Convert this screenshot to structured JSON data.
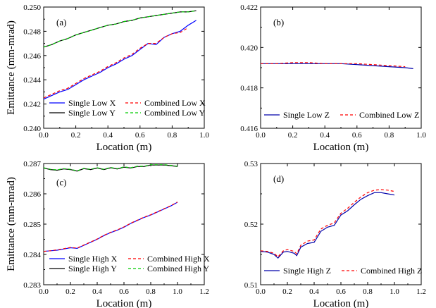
{
  "chart_data": [
    {
      "type": "line",
      "panel_label": "(a)",
      "xlabel": "Location (m)",
      "ylabel": "Emittance (mm-mrad)",
      "xlim": [
        0.0,
        1.0
      ],
      "ylim": [
        0.24,
        0.25
      ],
      "xticks": [
        "0.0",
        "0.2",
        "0.4",
        "0.6",
        "0.8",
        "1.0"
      ],
      "yticks": [
        "0.240",
        "0.242",
        "0.244",
        "0.246",
        "0.248",
        "0.250"
      ],
      "legend": "lower-right",
      "series": [
        {
          "name": "Single Low X",
          "color": "#0000ff",
          "dash": "solid",
          "x": [
            0.0,
            0.05,
            0.1,
            0.15,
            0.2,
            0.25,
            0.3,
            0.35,
            0.4,
            0.45,
            0.5,
            0.55,
            0.6,
            0.65,
            0.7,
            0.75,
            0.8,
            0.85,
            0.9,
            0.95
          ],
          "y": [
            0.2424,
            0.2427,
            0.243,
            0.2432,
            0.2436,
            0.244,
            0.2443,
            0.2446,
            0.245,
            0.2453,
            0.2457,
            0.246,
            0.2465,
            0.247,
            0.2469,
            0.2475,
            0.2478,
            0.248,
            0.2485,
            0.2489
          ]
        },
        {
          "name": "Single Low Y",
          "color": "#000000",
          "dash": "solid",
          "x": [
            0.0,
            0.05,
            0.1,
            0.15,
            0.2,
            0.25,
            0.3,
            0.35,
            0.4,
            0.45,
            0.5,
            0.55,
            0.6,
            0.65,
            0.7,
            0.75,
            0.8,
            0.85,
            0.9,
            0.95
          ],
          "y": [
            0.2467,
            0.2469,
            0.2472,
            0.2474,
            0.2477,
            0.2479,
            0.2481,
            0.2483,
            0.2485,
            0.2486,
            0.2488,
            0.2489,
            0.2491,
            0.2492,
            0.2493,
            0.2494,
            0.2495,
            0.2496,
            0.2496,
            0.2497
          ]
        },
        {
          "name": "Combined Low X",
          "color": "#ff0000",
          "dash": "dashed",
          "x": [
            0.0,
            0.05,
            0.1,
            0.15,
            0.2,
            0.25,
            0.3,
            0.35,
            0.4,
            0.45,
            0.5,
            0.55,
            0.6,
            0.65,
            0.7,
            0.75,
            0.8,
            0.85,
            0.9
          ],
          "y": [
            0.2425,
            0.2428,
            0.2431,
            0.2433,
            0.2437,
            0.2441,
            0.2444,
            0.2447,
            0.2451,
            0.2454,
            0.2458,
            0.2461,
            0.2466,
            0.247,
            0.247,
            0.2475,
            0.2478,
            0.2479,
            0.2483
          ]
        },
        {
          "name": "Combined Low Y",
          "color": "#00cc00",
          "dash": "dashed",
          "x": [
            0.0,
            0.05,
            0.1,
            0.15,
            0.2,
            0.25,
            0.3,
            0.35,
            0.4,
            0.45,
            0.5,
            0.55,
            0.6,
            0.65,
            0.7,
            0.75,
            0.8,
            0.85,
            0.9,
            0.95
          ],
          "y": [
            0.2467,
            0.2469,
            0.2472,
            0.2474,
            0.2477,
            0.2479,
            0.2481,
            0.2483,
            0.2485,
            0.2486,
            0.2488,
            0.2489,
            0.2491,
            0.2492,
            0.2493,
            0.2494,
            0.2495,
            0.2496,
            0.2496,
            0.2497
          ]
        }
      ]
    },
    {
      "type": "line",
      "panel_label": "(b)",
      "xlabel": "Location (m)",
      "ylabel": "",
      "xlim": [
        0.0,
        1.0
      ],
      "ylim": [
        0.416,
        0.422
      ],
      "xticks": [
        "0.0",
        "0.2",
        "0.4",
        "0.6",
        "0.8",
        "1.0"
      ],
      "yticks": [
        "0.416",
        "0.418",
        "0.420",
        "0.422"
      ],
      "legend": "lower-center",
      "series": [
        {
          "name": "Single Low Z",
          "color": "#0000aa",
          "dash": "solid",
          "x": [
            0.0,
            0.1,
            0.2,
            0.3,
            0.4,
            0.5,
            0.6,
            0.7,
            0.8,
            0.9,
            0.95
          ],
          "y": [
            0.4192,
            0.4192,
            0.4192,
            0.4192,
            0.4192,
            0.4192,
            0.41915,
            0.4191,
            0.41905,
            0.419,
            0.41895
          ]
        },
        {
          "name": "Combined Low Z",
          "color": "#ff0000",
          "dash": "dashed",
          "x": [
            0.0,
            0.1,
            0.2,
            0.3,
            0.4,
            0.5,
            0.6,
            0.7,
            0.8,
            0.9
          ],
          "y": [
            0.4192,
            0.4192,
            0.41925,
            0.41925,
            0.4192,
            0.4192,
            0.4192,
            0.41915,
            0.4191,
            0.41905
          ]
        }
      ]
    },
    {
      "type": "line",
      "panel_label": "(c)",
      "xlabel": "Location (m)",
      "ylabel": "Emittance (mm-mrad)",
      "xlim": [
        0.0,
        1.2
      ],
      "ylim": [
        0.283,
        0.287
      ],
      "xticks": [
        "0.0",
        "0.2",
        "0.4",
        "0.6",
        "0.8",
        "1.0",
        "1.2"
      ],
      "yticks": [
        "0.283",
        "0.284",
        "0.285",
        "0.286",
        "0.287"
      ],
      "legend": "lower-right",
      "series": [
        {
          "name": "Single High X",
          "color": "#0000ff",
          "dash": "solid",
          "x": [
            0.0,
            0.05,
            0.1,
            0.15,
            0.2,
            0.25,
            0.3,
            0.35,
            0.4,
            0.45,
            0.5,
            0.55,
            0.6,
            0.65,
            0.7,
            0.75,
            0.8,
            0.85,
            0.9,
            0.95,
            1.0
          ],
          "y": [
            0.2841,
            0.28412,
            0.28414,
            0.28418,
            0.28422,
            0.2842,
            0.2843,
            0.2844,
            0.2845,
            0.28462,
            0.28472,
            0.2848,
            0.2849,
            0.28502,
            0.28512,
            0.28522,
            0.2853,
            0.2854,
            0.2855,
            0.2856,
            0.28572
          ]
        },
        {
          "name": "Single High Y",
          "color": "#000000",
          "dash": "solid",
          "x": [
            0.0,
            0.05,
            0.1,
            0.15,
            0.2,
            0.25,
            0.3,
            0.35,
            0.4,
            0.45,
            0.5,
            0.55,
            0.6,
            0.65,
            0.7,
            0.75,
            0.8,
            0.85,
            0.9,
            0.95,
            1.0
          ],
          "y": [
            0.28685,
            0.2868,
            0.28678,
            0.28682,
            0.2868,
            0.28675,
            0.28683,
            0.2868,
            0.28685,
            0.2868,
            0.28686,
            0.28682,
            0.28688,
            0.28685,
            0.2869,
            0.2869,
            0.28695,
            0.28695,
            0.28695,
            0.28693,
            0.2869
          ]
        },
        {
          "name": "Combined High X",
          "color": "#ff0000",
          "dash": "dashed",
          "x": [
            0.0,
            0.05,
            0.1,
            0.15,
            0.2,
            0.25,
            0.3,
            0.35,
            0.4,
            0.45,
            0.5,
            0.55,
            0.6,
            0.65,
            0.7,
            0.75,
            0.8,
            0.85,
            0.9,
            0.95,
            1.0
          ],
          "y": [
            0.2841,
            0.28412,
            0.28415,
            0.28419,
            0.28423,
            0.28421,
            0.28431,
            0.28441,
            0.28451,
            0.28463,
            0.28473,
            0.28481,
            0.28491,
            0.28503,
            0.28513,
            0.28523,
            0.28531,
            0.28541,
            0.28551,
            0.28561,
            0.28573
          ]
        },
        {
          "name": "Combined High Y",
          "color": "#00cc00",
          "dash": "dashed",
          "x": [
            0.0,
            0.05,
            0.1,
            0.15,
            0.2,
            0.25,
            0.3,
            0.35,
            0.4,
            0.45,
            0.5,
            0.55,
            0.6,
            0.65,
            0.7,
            0.75,
            0.8,
            0.85,
            0.9,
            0.95,
            1.0
          ],
          "y": [
            0.28686,
            0.28681,
            0.28679,
            0.28683,
            0.28681,
            0.28676,
            0.28684,
            0.28681,
            0.28686,
            0.28681,
            0.28687,
            0.28683,
            0.28689,
            0.28686,
            0.28691,
            0.28691,
            0.28696,
            0.28696,
            0.28696,
            0.28694,
            0.28691
          ]
        }
      ]
    },
    {
      "type": "line",
      "panel_label": "(d)",
      "xlabel": "Location (m)",
      "ylabel": "",
      "xlim": [
        0.0,
        1.2
      ],
      "ylim": [
        0.51,
        0.53
      ],
      "xticks": [
        "0.0",
        "0.2",
        "0.4",
        "0.6",
        "0.8",
        "1.0",
        "1.2"
      ],
      "yticks": [
        "0.51",
        "0.52",
        "0.53"
      ],
      "legend": "lower-right",
      "series": [
        {
          "name": "Single High Z",
          "color": "#0000aa",
          "dash": "solid",
          "x": [
            0.0,
            0.05,
            0.1,
            0.13,
            0.17,
            0.2,
            0.25,
            0.27,
            0.3,
            0.35,
            0.4,
            0.45,
            0.5,
            0.55,
            0.6,
            0.65,
            0.7,
            0.75,
            0.8,
            0.85,
            0.9,
            0.95,
            1.0
          ],
          "y": [
            0.5155,
            0.5154,
            0.515,
            0.5144,
            0.5154,
            0.5155,
            0.5152,
            0.5148,
            0.5162,
            0.5168,
            0.517,
            0.5188,
            0.5195,
            0.5198,
            0.5215,
            0.5222,
            0.5232,
            0.5241,
            0.5247,
            0.5252,
            0.5252,
            0.525,
            0.5248
          ]
        },
        {
          "name": "Combined High Z",
          "color": "#ff0000",
          "dash": "dashed",
          "x": [
            0.0,
            0.05,
            0.1,
            0.13,
            0.17,
            0.2,
            0.25,
            0.27,
            0.3,
            0.35,
            0.4,
            0.45,
            0.5,
            0.55,
            0.6,
            0.65,
            0.7,
            0.75,
            0.8,
            0.85,
            0.9,
            0.95,
            1.0
          ],
          "y": [
            0.5156,
            0.5155,
            0.5152,
            0.5146,
            0.5156,
            0.5158,
            0.5155,
            0.5151,
            0.5165,
            0.5172,
            0.5174,
            0.5192,
            0.5198,
            0.5202,
            0.5218,
            0.5226,
            0.5236,
            0.5245,
            0.5252,
            0.5256,
            0.5257,
            0.5256,
            0.5254
          ]
        }
      ]
    }
  ]
}
